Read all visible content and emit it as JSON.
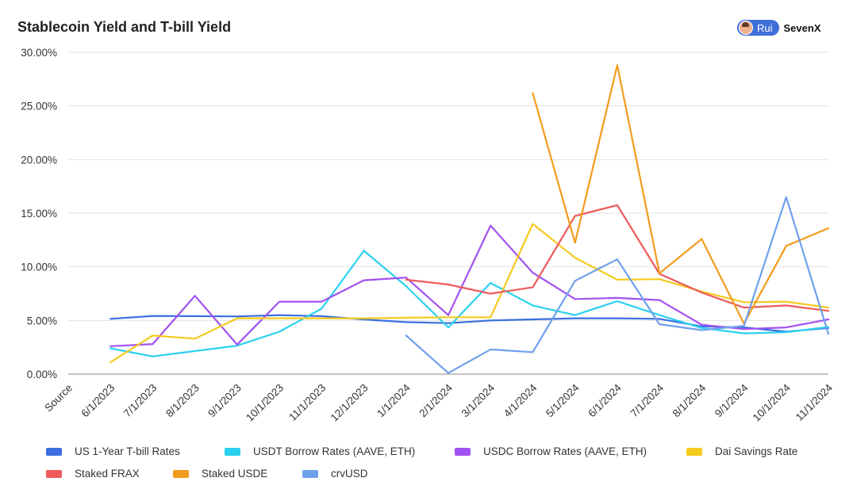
{
  "header": {
    "title": "Stablecoin Yield and T-bill Yield",
    "brand_user": "Rui",
    "brand_name": "SevenX"
  },
  "chart_data": {
    "type": "line",
    "title": "Stablecoin Yield and T-bill Yield",
    "xlabel": "",
    "ylabel": "",
    "ylim": [
      0,
      30
    ],
    "y_ticks": [
      "0.00%",
      "5.00%",
      "10.00%",
      "15.00%",
      "20.00%",
      "25.00%",
      "30.00%"
    ],
    "grid": true,
    "legend_position": "bottom",
    "categories": [
      "Source",
      "6/1/2023",
      "7/1/2023",
      "8/1/2023",
      "9/1/2023",
      "10/1/2023",
      "11/1/2023",
      "12/1/2023",
      "1/1/2024",
      "2/1/2024",
      "3/1/2024",
      "4/1/2024",
      "5/1/2024",
      "6/1/2024",
      "7/1/2024",
      "8/1/2024",
      "9/1/2024",
      "10/1/2024",
      "11/1/2024"
    ],
    "series": [
      {
        "name": "US 1-Year T-bill Rates",
        "color": "#3b6fe0",
        "values": [
          null,
          5.15,
          5.42,
          5.4,
          5.38,
          5.5,
          5.4,
          5.1,
          4.85,
          4.75,
          5.0,
          5.1,
          5.2,
          5.2,
          5.15,
          4.45,
          4.35,
          3.95,
          4.3
        ]
      },
      {
        "name": "USDT Borrow Rates (AAVE, ETH)",
        "color": "#2ad1f0",
        "values": [
          null,
          2.4,
          1.65,
          2.15,
          2.65,
          3.95,
          6.1,
          11.5,
          8.2,
          4.35,
          8.5,
          6.4,
          5.5,
          6.8,
          5.5,
          4.3,
          3.8,
          3.9,
          4.4
        ]
      },
      {
        "name": "USDC Borrow Rates (AAVE, ETH)",
        "color": "#a351f0",
        "values": [
          null,
          2.6,
          2.8,
          7.3,
          2.75,
          6.75,
          6.75,
          8.75,
          9.0,
          5.5,
          13.85,
          9.45,
          7.0,
          7.1,
          6.9,
          4.6,
          4.2,
          4.35,
          5.1
        ]
      },
      {
        "name": "Dai Savings Rate",
        "color": "#f5ca1e",
        "values": [
          null,
          1.1,
          3.6,
          3.3,
          5.2,
          5.2,
          5.2,
          5.2,
          5.25,
          5.3,
          5.3,
          14.0,
          10.85,
          8.8,
          8.85,
          7.7,
          6.7,
          6.75,
          6.2
        ]
      },
      {
        "name": "Staked FRAX",
        "color": "#ee5a5a",
        "values": [
          null,
          null,
          null,
          null,
          null,
          null,
          null,
          null,
          8.8,
          8.35,
          7.5,
          8.1,
          14.75,
          15.75,
          9.35,
          7.6,
          6.2,
          6.4,
          5.9
        ]
      },
      {
        "name": "Staked USDE",
        "color": "#f39c1c",
        "values": [
          null,
          null,
          null,
          null,
          null,
          null,
          null,
          null,
          null,
          null,
          null,
          26.2,
          12.25,
          28.8,
          9.4,
          12.6,
          4.7,
          11.95,
          13.6
        ]
      },
      {
        "name": "crvUSD",
        "color": "#6fa0ec",
        "values": [
          null,
          null,
          null,
          null,
          null,
          null,
          null,
          null,
          3.6,
          0.1,
          2.3,
          2.05,
          8.7,
          10.7,
          4.65,
          4.1,
          4.5,
          16.5,
          3.75
        ]
      }
    ]
  }
}
